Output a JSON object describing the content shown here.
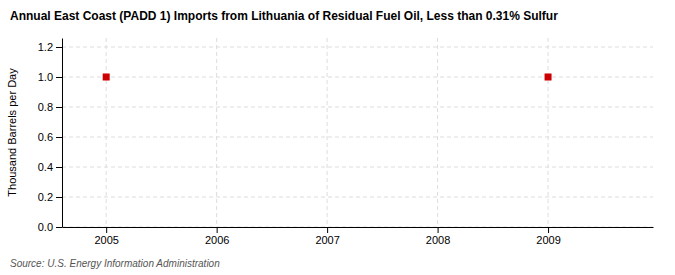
{
  "chart_data": {
    "type": "scatter",
    "title": "Annual East Coast (PADD 1) Imports from Lithuania of Residual Fuel Oil, Less than 0.31% Sulfur",
    "ylabel": "Thousand Barrels per Day",
    "source": "Source: U.S. Energy Information Administration",
    "x": [
      2005,
      2009
    ],
    "values": [
      1.0,
      1.0
    ],
    "color": "#cc0000",
    "marker": "square",
    "xlim": [
      2004.6,
      2009.95
    ],
    "ylim": [
      0.0,
      1.26
    ],
    "xticks": [
      2005,
      2006,
      2007,
      2008,
      2009
    ],
    "yticks": [
      {
        "value": 0.0,
        "label": "0.0"
      },
      0.2,
      0.4,
      0.6,
      0.8,
      {
        "value": 1.0,
        "label": "1.0"
      },
      1.2
    ],
    "grid": true
  }
}
